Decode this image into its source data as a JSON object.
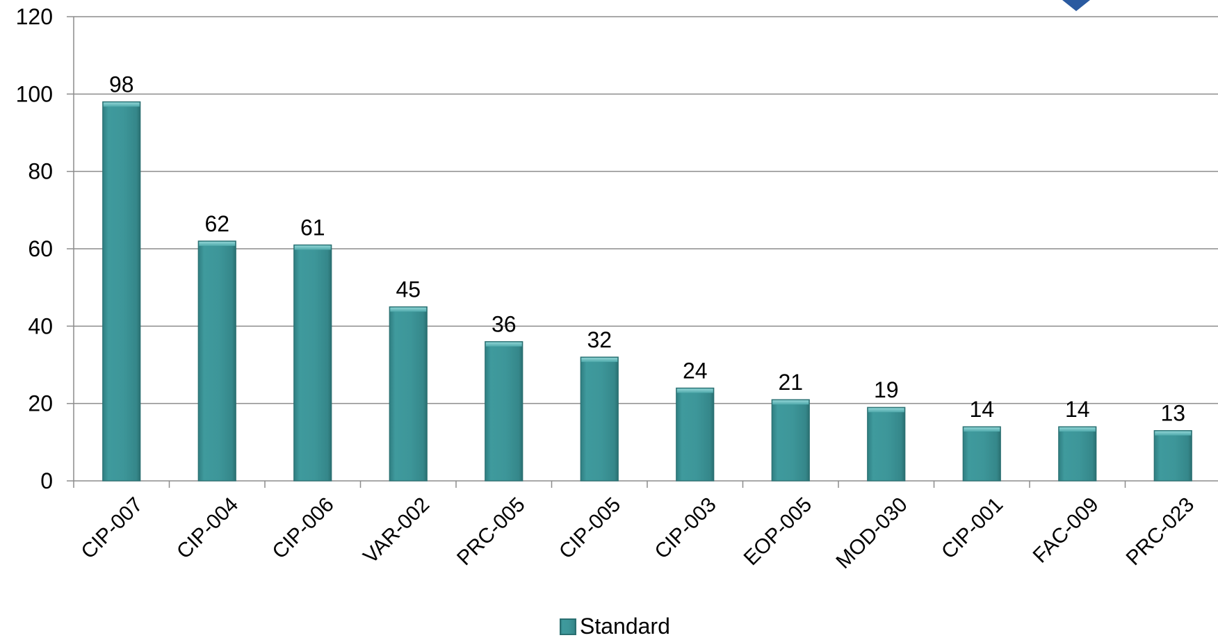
{
  "chart_data": {
    "type": "bar",
    "categories": [
      "CIP-007",
      "CIP-004",
      "CIP-006",
      "VAR-002",
      "PRC-005",
      "CIP-005",
      "CIP-003",
      "EOP-005",
      "MOD-030",
      "CIP-001",
      "FAC-009",
      "PRC-023"
    ],
    "series": [
      {
        "name": "Standard",
        "values": [
          98,
          62,
          61,
          45,
          36,
          32,
          24,
          21,
          19,
          14,
          14,
          13
        ]
      }
    ],
    "title": "",
    "xlabel": "",
    "ylabel": "",
    "ylim": [
      0,
      120
    ],
    "yticks": [
      "0",
      "20",
      "40",
      "60",
      "80",
      "100",
      "120"
    ],
    "grid": true,
    "legend_position": "bottom",
    "colors": {
      "bar_fill": "#3d9699",
      "bar_top": "#6cc0c2",
      "bar_edge": "#2a6f71",
      "grid": "#8c8c8c",
      "axis": "#8c8c8c",
      "logo_accent": "#2a5aa0"
    }
  }
}
